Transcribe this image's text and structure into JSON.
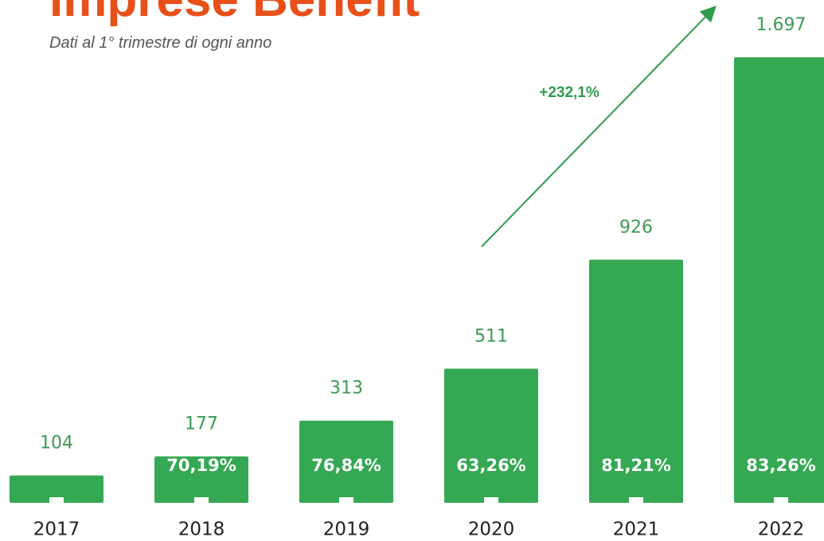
{
  "chart_data": {
    "type": "bar",
    "title": "Imprese Benefit",
    "subtitle": "Dati al 1° trimestre di ogni anno",
    "categories": [
      "2017",
      "2018",
      "2019",
      "2020",
      "2021",
      "2022"
    ],
    "values": [
      104,
      177,
      313,
      511,
      926,
      1697
    ],
    "value_labels": [
      "104",
      "177",
      "313",
      "511",
      "926",
      "1.697"
    ],
    "bar_labels": [
      null,
      "70,19%",
      "76,84%",
      "63,26%",
      "81,21%",
      "83,26%"
    ],
    "annotation": "+232,1%",
    "color": "#35a853"
  }
}
